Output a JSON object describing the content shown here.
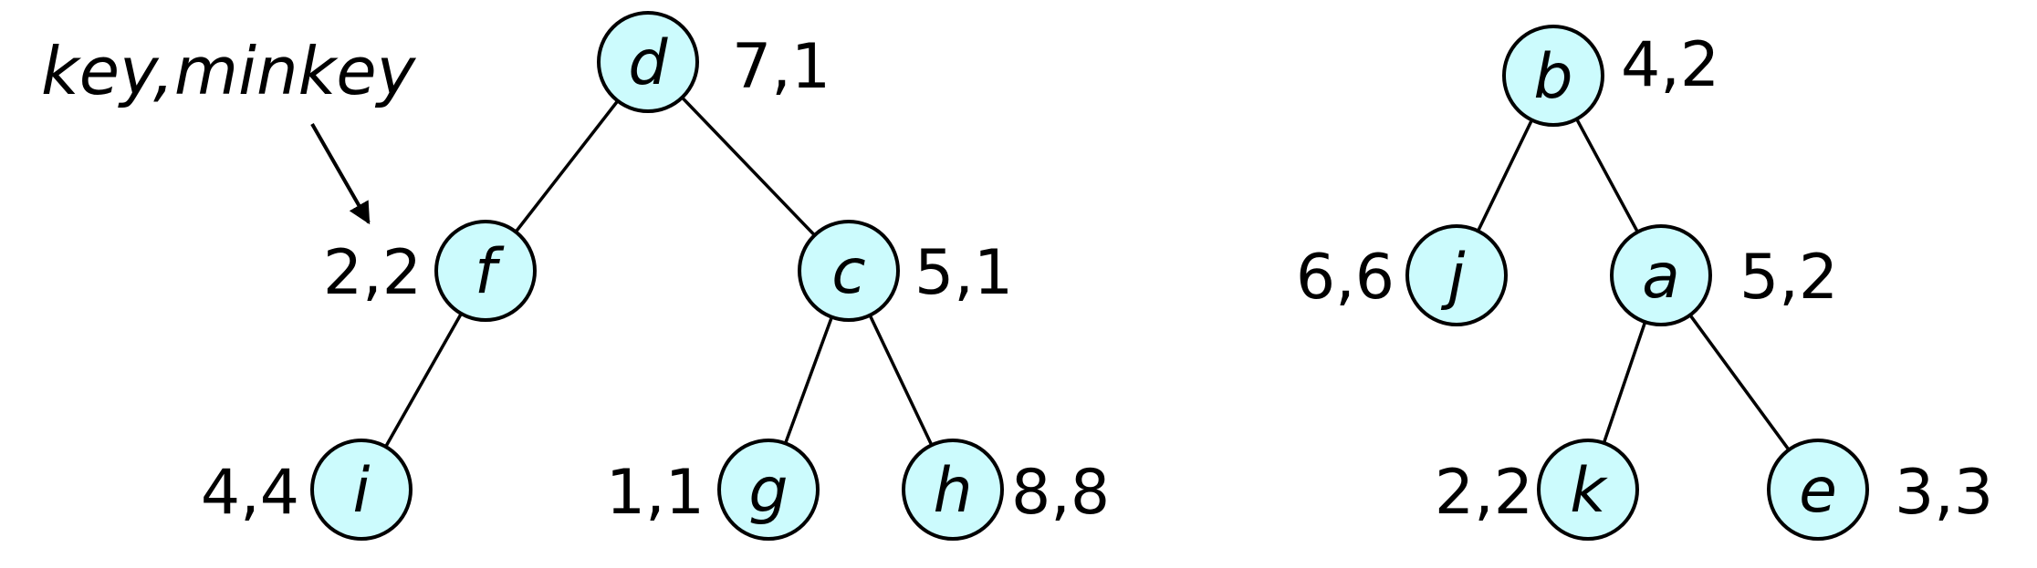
{
  "colors": {
    "node_fill": "#ccfbfd",
    "stroke": "#000000",
    "text": "#000000",
    "background": "#ffffff"
  },
  "legend": {
    "text": "key,minkey"
  },
  "trees": [
    {
      "nodes": [
        {
          "id": "d",
          "label": "d",
          "values": "7,1"
        },
        {
          "id": "f",
          "label": "f",
          "values": "2,2"
        },
        {
          "id": "c",
          "label": "c",
          "values": "5,1"
        },
        {
          "id": "i",
          "label": "i",
          "values": "4,4"
        },
        {
          "id": "g",
          "label": "g",
          "values": "1,1"
        },
        {
          "id": "h",
          "label": "h",
          "values": "8,8"
        }
      ],
      "edges": [
        [
          "d",
          "f"
        ],
        [
          "d",
          "c"
        ],
        [
          "f",
          "i"
        ],
        [
          "c",
          "g"
        ],
        [
          "c",
          "h"
        ]
      ]
    },
    {
      "nodes": [
        {
          "id": "b",
          "label": "b",
          "values": "4,2"
        },
        {
          "id": "j",
          "label": "j",
          "values": "6,6"
        },
        {
          "id": "a",
          "label": "a",
          "values": "5,2"
        },
        {
          "id": "k",
          "label": "k",
          "values": "2,2"
        },
        {
          "id": "e",
          "label": "e",
          "values": "3,3"
        }
      ],
      "edges": [
        [
          "b",
          "j"
        ],
        [
          "b",
          "a"
        ],
        [
          "a",
          "k"
        ],
        [
          "a",
          "e"
        ]
      ]
    }
  ]
}
